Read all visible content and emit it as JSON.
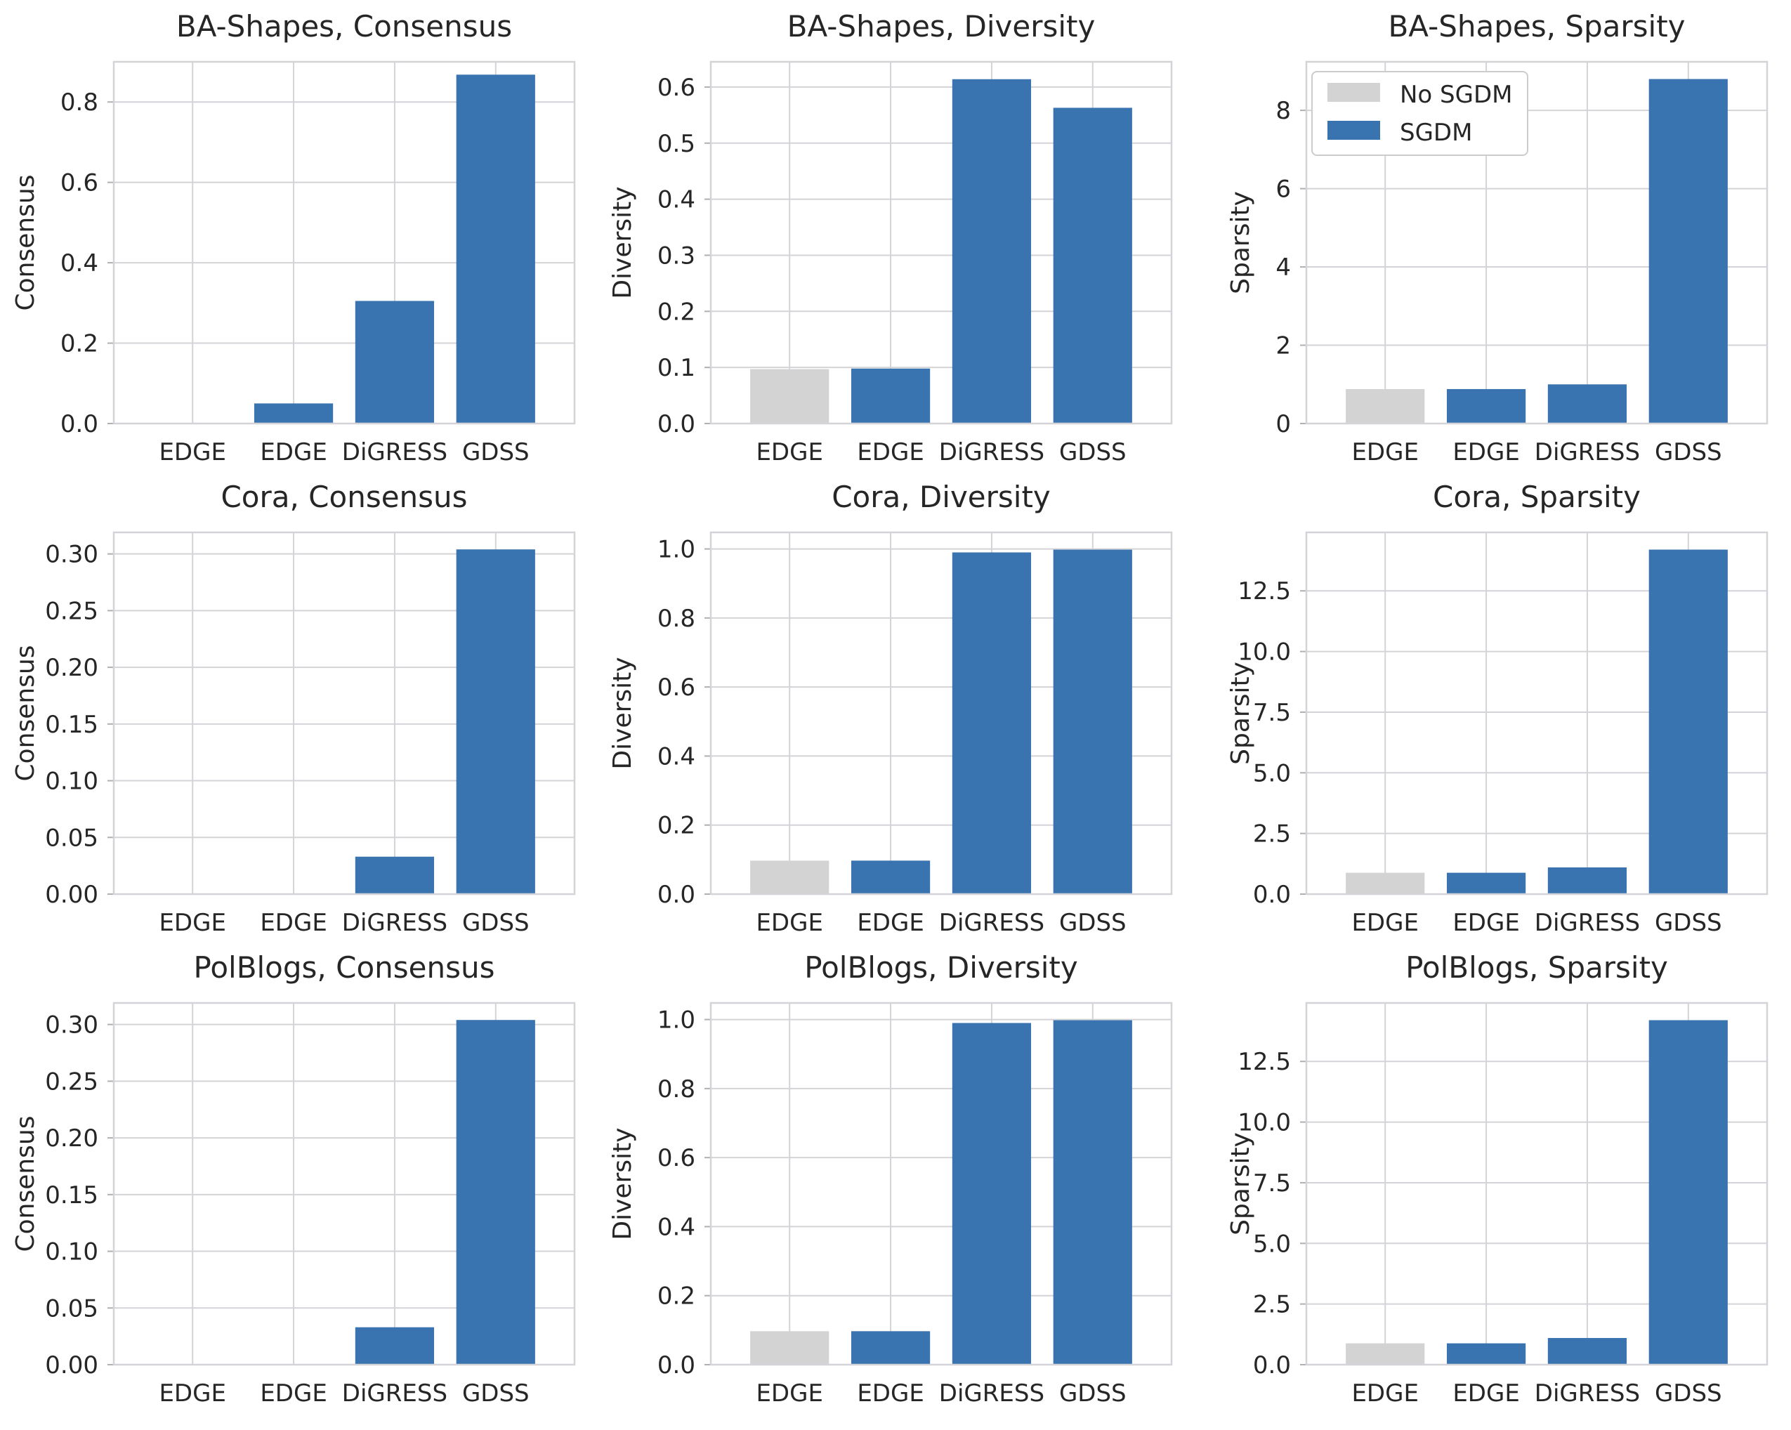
{
  "colors": {
    "no_sgdm": "#d3d3d3",
    "sgdm": "#3a74b0"
  },
  "legend": {
    "location": "upper-left of BA-Shapes, Sparsity",
    "entries": [
      "No SGDM",
      "SGDM"
    ]
  },
  "chart_data": [
    {
      "type": "bar",
      "title": "BA-Shapes, Consensus",
      "ylabel": "Consensus",
      "categories": [
        "EDGE",
        "EDGE",
        "DiGRESS",
        "GDSS"
      ],
      "values": [
        0.0,
        0.05,
        0.305,
        0.868
      ],
      "series_membership": [
        "No SGDM",
        "SGDM",
        "SGDM",
        "SGDM"
      ],
      "ylim": [
        0,
        0.9
      ],
      "yticks": [
        0.0,
        0.2,
        0.4,
        0.6,
        0.8
      ],
      "ytick_labels": [
        "0.0",
        "0.2",
        "0.4",
        "0.6",
        "0.8"
      ],
      "grid": true
    },
    {
      "type": "bar",
      "title": "BA-Shapes, Diversity",
      "ylabel": "Diversity",
      "categories": [
        "EDGE",
        "EDGE",
        "DiGRESS",
        "GDSS"
      ],
      "values": [
        0.097,
        0.098,
        0.614,
        0.563
      ],
      "series_membership": [
        "No SGDM",
        "SGDM",
        "SGDM",
        "SGDM"
      ],
      "ylim": [
        0,
        0.645
      ],
      "yticks": [
        0.0,
        0.1,
        0.2,
        0.3,
        0.4,
        0.5,
        0.6
      ],
      "ytick_labels": [
        "0.0",
        "0.1",
        "0.2",
        "0.3",
        "0.4",
        "0.5",
        "0.6"
      ],
      "grid": true
    },
    {
      "type": "bar",
      "title": "BA-Shapes, Sparsity",
      "ylabel": "Sparsity",
      "categories": [
        "EDGE",
        "EDGE",
        "DiGRESS",
        "GDSS"
      ],
      "values": [
        0.88,
        0.88,
        1.0,
        8.8
      ],
      "series_membership": [
        "No SGDM",
        "SGDM",
        "SGDM",
        "SGDM"
      ],
      "ylim": [
        0,
        9.24
      ],
      "yticks": [
        0,
        2,
        4,
        6,
        8
      ],
      "ytick_labels": [
        "0",
        "2",
        "4",
        "6",
        "8"
      ],
      "grid": true
    },
    {
      "type": "bar",
      "title": "Cora, Consensus",
      "ylabel": "Consensus",
      "categories": [
        "EDGE",
        "EDGE",
        "DiGRESS",
        "GDSS"
      ],
      "values": [
        0.0,
        0.0,
        0.033,
        0.304
      ],
      "series_membership": [
        "No SGDM",
        "SGDM",
        "SGDM",
        "SGDM"
      ],
      "ylim": [
        0,
        0.319
      ],
      "yticks": [
        0.0,
        0.05,
        0.1,
        0.15,
        0.2,
        0.25,
        0.3
      ],
      "ytick_labels": [
        "0.00",
        "0.05",
        "0.10",
        "0.15",
        "0.20",
        "0.25",
        "0.30"
      ],
      "grid": true
    },
    {
      "type": "bar",
      "title": "Cora, Diversity",
      "ylabel": "Diversity",
      "categories": [
        "EDGE",
        "EDGE",
        "DiGRESS",
        "GDSS"
      ],
      "values": [
        0.097,
        0.097,
        0.99,
        0.998
      ],
      "series_membership": [
        "No SGDM",
        "SGDM",
        "SGDM",
        "SGDM"
      ],
      "ylim": [
        0,
        1.048
      ],
      "yticks": [
        0.0,
        0.2,
        0.4,
        0.6,
        0.8,
        1.0
      ],
      "ytick_labels": [
        "0.0",
        "0.2",
        "0.4",
        "0.6",
        "0.8",
        "1.0"
      ],
      "grid": true
    },
    {
      "type": "bar",
      "title": "Cora, Sparsity",
      "ylabel": "Sparsity",
      "categories": [
        "EDGE",
        "EDGE",
        "DiGRESS",
        "GDSS"
      ],
      "values": [
        0.88,
        0.88,
        1.1,
        14.2
      ],
      "series_membership": [
        "No SGDM",
        "SGDM",
        "SGDM",
        "SGDM"
      ],
      "ylim": [
        0,
        14.91
      ],
      "yticks": [
        0.0,
        2.5,
        5.0,
        7.5,
        10.0,
        12.5
      ],
      "ytick_labels": [
        "0.0",
        "2.5",
        "5.0",
        "7.5",
        "10.0",
        "12.5"
      ],
      "grid": true
    },
    {
      "type": "bar",
      "title": "PolBlogs, Consensus",
      "ylabel": "Consensus",
      "categories": [
        "EDGE",
        "EDGE",
        "DiGRESS",
        "GDSS"
      ],
      "values": [
        0.0,
        0.0,
        0.033,
        0.304
      ],
      "series_membership": [
        "No SGDM",
        "SGDM",
        "SGDM",
        "SGDM"
      ],
      "ylim": [
        0,
        0.319
      ],
      "yticks": [
        0.0,
        0.05,
        0.1,
        0.15,
        0.2,
        0.25,
        0.3
      ],
      "ytick_labels": [
        "0.00",
        "0.05",
        "0.10",
        "0.15",
        "0.20",
        "0.25",
        "0.30"
      ],
      "grid": true
    },
    {
      "type": "bar",
      "title": "PolBlogs, Diversity",
      "ylabel": "Diversity",
      "categories": [
        "EDGE",
        "EDGE",
        "DiGRESS",
        "GDSS"
      ],
      "values": [
        0.097,
        0.097,
        0.99,
        0.998
      ],
      "series_membership": [
        "No SGDM",
        "SGDM",
        "SGDM",
        "SGDM"
      ],
      "ylim": [
        0,
        1.048
      ],
      "yticks": [
        0.0,
        0.2,
        0.4,
        0.6,
        0.8,
        1.0
      ],
      "ytick_labels": [
        "0.0",
        "0.2",
        "0.4",
        "0.6",
        "0.8",
        "1.0"
      ],
      "grid": true
    },
    {
      "type": "bar",
      "title": "PolBlogs, Sparsity",
      "ylabel": "Sparsity",
      "categories": [
        "EDGE",
        "EDGE",
        "DiGRESS",
        "GDSS"
      ],
      "values": [
        0.88,
        0.88,
        1.1,
        14.2
      ],
      "series_membership": [
        "No SGDM",
        "SGDM",
        "SGDM",
        "SGDM"
      ],
      "ylim": [
        0,
        14.91
      ],
      "yticks": [
        0.0,
        2.5,
        5.0,
        7.5,
        10.0,
        12.5
      ],
      "ytick_labels": [
        "0.0",
        "2.5",
        "5.0",
        "7.5",
        "10.0",
        "12.5"
      ],
      "grid": true
    }
  ]
}
